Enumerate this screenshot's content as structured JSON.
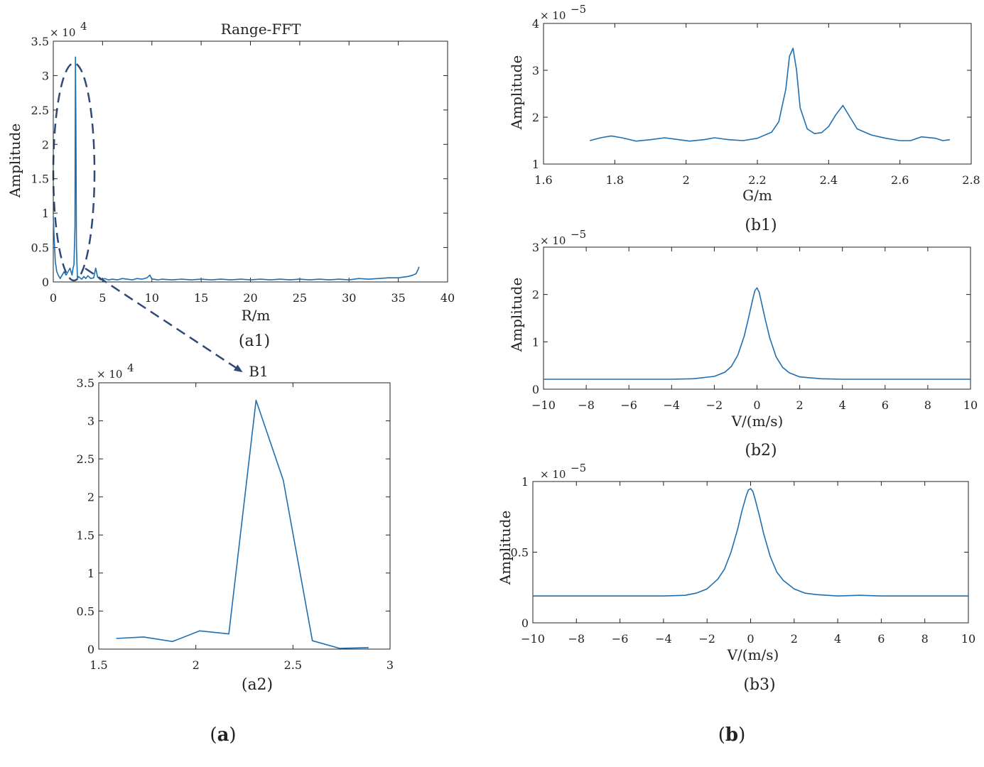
{
  "colors": {
    "series": "#1f6fb0",
    "axis": "#222222",
    "annotation": "#2f4a78"
  },
  "captions": {
    "a": "a",
    "b": "b"
  },
  "annotations": {
    "peak_label": "B1"
  },
  "chart_data": [
    {
      "id": "a1",
      "type": "line",
      "title": "Range-FFT",
      "caption": "(a1)",
      "xlabel": "R/m",
      "ylabel": "Amplitude",
      "exponent_label": "× 10",
      "exponent": "4",
      "xlim": [
        0,
        40
      ],
      "ylim": [
        0,
        3.5
      ],
      "xticks": [
        0,
        5,
        10,
        15,
        20,
        25,
        30,
        35,
        40
      ],
      "xtick_labels": [
        "0",
        "5",
        "10",
        "15",
        "20",
        "25",
        "30",
        "35",
        "40"
      ],
      "yticks": [
        0,
        0.5,
        1,
        1.5,
        2,
        2.5,
        3,
        3.5
      ],
      "ytick_labels": [
        "0",
        "0.5",
        "1",
        "1.5",
        "2",
        "2.5",
        "3",
        "3.5"
      ],
      "series": [
        {
          "name": "Range-FFT",
          "x": [
            0,
            0.1,
            0.2,
            0.35,
            0.5,
            0.7,
            0.9,
            1.1,
            1.3,
            1.5,
            1.7,
            1.9,
            2.0,
            2.1,
            2.2,
            2.25,
            2.3,
            2.35,
            2.45,
            2.55,
            2.7,
            2.9,
            3.1,
            3.3,
            3.5,
            3.8,
            4.1,
            4.3,
            4.5,
            4.8,
            5.2,
            5.6,
            6,
            6.5,
            7,
            7.5,
            8,
            8.5,
            9,
            9.5,
            9.8,
            10.0,
            10.2,
            10.6,
            11,
            12,
            13,
            14,
            15,
            16,
            17,
            18,
            19,
            20,
            21,
            22,
            23,
            24,
            25,
            26,
            27,
            28,
            29,
            30,
            31,
            32,
            33,
            34,
            35,
            35.5,
            36,
            36.5,
            36.8,
            37.0,
            37.1
          ],
          "y": [
            0.95,
            0.6,
            0.3,
            0.15,
            0.1,
            0.05,
            0.1,
            0.15,
            0.1,
            0.15,
            0.2,
            0.1,
            0.2,
            0.25,
            0.8,
            3.27,
            2.2,
            0.5,
            0.05,
            0.08,
            0.06,
            0.04,
            0.08,
            0.05,
            0.09,
            0.05,
            0.06,
            0.2,
            0.07,
            0.03,
            0.05,
            0.03,
            0.04,
            0.03,
            0.05,
            0.04,
            0.03,
            0.05,
            0.04,
            0.06,
            0.1,
            0.04,
            0.04,
            0.03,
            0.04,
            0.03,
            0.04,
            0.03,
            0.04,
            0.03,
            0.04,
            0.03,
            0.04,
            0.03,
            0.04,
            0.03,
            0.04,
            0.03,
            0.04,
            0.03,
            0.04,
            0.03,
            0.04,
            0.03,
            0.05,
            0.04,
            0.05,
            0.06,
            0.06,
            0.07,
            0.08,
            0.1,
            0.12,
            0.18,
            0.22
          ]
        }
      ]
    },
    {
      "id": "a2",
      "type": "line",
      "title": "B1",
      "caption": "(a2)",
      "xlabel": "",
      "ylabel": "",
      "exponent_label": "× 10",
      "exponent": "4",
      "xlim": [
        1.5,
        3
      ],
      "ylim": [
        0,
        3.5
      ],
      "xticks": [
        1.5,
        2,
        2.5,
        3
      ],
      "xtick_labels": [
        "1.5",
        "2",
        "2.5",
        "3"
      ],
      "yticks": [
        0,
        0.5,
        1,
        1.5,
        2,
        2.5,
        3,
        3.5
      ],
      "ytick_labels": [
        "0",
        "0.5",
        "1",
        "1.5",
        "2",
        "2.5",
        "3",
        "3.5"
      ],
      "series": [
        {
          "name": "B1",
          "x": [
            1.59,
            1.73,
            1.88,
            2.02,
            2.17,
            2.31,
            2.45,
            2.6,
            2.74,
            2.89
          ],
          "y": [
            0.14,
            0.16,
            0.1,
            0.24,
            0.2,
            3.27,
            2.22,
            0.11,
            0.01,
            0.02
          ]
        }
      ]
    },
    {
      "id": "b1",
      "type": "line",
      "title": "",
      "caption": "(b1)",
      "xlabel": "G/m",
      "ylabel": "Amplitude",
      "exponent_label": "× 10",
      "exponent": "−5",
      "xlim": [
        1.6,
        2.8
      ],
      "ylim": [
        1,
        4
      ],
      "xticks": [
        1.6,
        1.8,
        2,
        2.2,
        2.4,
        2.6,
        2.8
      ],
      "xtick_labels": [
        "1.6",
        "1.8",
        "2",
        "2.2",
        "2.4",
        "2.6",
        "2.8"
      ],
      "yticks": [
        1,
        2,
        3,
        4
      ],
      "ytick_labels": [
        "1",
        "2",
        "3",
        "4"
      ],
      "series": [
        {
          "name": "b1",
          "x": [
            1.73,
            1.76,
            1.79,
            1.82,
            1.86,
            1.9,
            1.94,
            1.98,
            2.01,
            2.05,
            2.08,
            2.12,
            2.16,
            2.2,
            2.24,
            2.26,
            2.28,
            2.29,
            2.3,
            2.31,
            2.32,
            2.34,
            2.36,
            2.38,
            2.4,
            2.42,
            2.44,
            2.46,
            2.48,
            2.52,
            2.56,
            2.6,
            2.63,
            2.66,
            2.7,
            2.72,
            2.74
          ],
          "y": [
            1.5,
            1.56,
            1.6,
            1.56,
            1.49,
            1.52,
            1.56,
            1.52,
            1.49,
            1.52,
            1.56,
            1.52,
            1.5,
            1.55,
            1.68,
            1.9,
            2.6,
            3.3,
            3.47,
            3.0,
            2.2,
            1.75,
            1.65,
            1.67,
            1.8,
            2.05,
            2.25,
            2.0,
            1.75,
            1.62,
            1.55,
            1.5,
            1.5,
            1.58,
            1.55,
            1.5,
            1.52
          ]
        }
      ]
    },
    {
      "id": "b2",
      "type": "line",
      "title": "",
      "caption": "(b2)",
      "xlabel": "V/(m/s)",
      "ylabel": "Amplitude",
      "exponent_label": "× 10",
      "exponent": "−5",
      "xlim": [
        -10,
        10
      ],
      "ylim": [
        0,
        3
      ],
      "xticks": [
        -10,
        -8,
        -6,
        -4,
        -2,
        0,
        2,
        4,
        6,
        8,
        10
      ],
      "xtick_labels": [
        "−10",
        "−8",
        "−6",
        "−4",
        "−2",
        "0",
        "2",
        "4",
        "6",
        "8",
        "10"
      ],
      "yticks": [
        0,
        1,
        2,
        3
      ],
      "ytick_labels": [
        "0",
        "1",
        "2",
        "3"
      ],
      "series": [
        {
          "name": "b2",
          "x": [
            -10,
            -8,
            -6,
            -4,
            -3,
            -2,
            -1.5,
            -1.2,
            -0.9,
            -0.6,
            -0.4,
            -0.2,
            -0.1,
            0,
            0.1,
            0.2,
            0.4,
            0.6,
            0.9,
            1.2,
            1.5,
            2,
            3,
            4,
            6,
            8,
            10
          ],
          "y": [
            0.21,
            0.21,
            0.21,
            0.21,
            0.22,
            0.27,
            0.36,
            0.48,
            0.72,
            1.12,
            1.5,
            1.9,
            2.08,
            2.14,
            2.05,
            1.85,
            1.45,
            1.08,
            0.68,
            0.46,
            0.35,
            0.26,
            0.22,
            0.21,
            0.21,
            0.21,
            0.21
          ]
        }
      ]
    },
    {
      "id": "b3",
      "type": "line",
      "title": "",
      "caption": "(b3)",
      "xlabel": "V/(m/s)",
      "ylabel": "Amplitude",
      "exponent_label": "× 10",
      "exponent": "−5",
      "xlim": [
        -10,
        10
      ],
      "ylim": [
        0,
        1
      ],
      "xticks": [
        -10,
        -8,
        -6,
        -4,
        -2,
        0,
        2,
        4,
        6,
        8,
        10
      ],
      "xtick_labels": [
        "−10",
        "−8",
        "−6",
        "−4",
        "−2",
        "0",
        "2",
        "4",
        "6",
        "8",
        "10"
      ],
      "yticks": [
        0,
        0.5,
        1
      ],
      "ytick_labels": [
        "0",
        "0.5",
        "1"
      ],
      "series": [
        {
          "name": "b3",
          "x": [
            -10,
            -8,
            -6,
            -4,
            -3,
            -2.5,
            -2,
            -1.5,
            -1.2,
            -0.9,
            -0.6,
            -0.4,
            -0.2,
            -0.1,
            0,
            0.1,
            0.2,
            0.4,
            0.6,
            0.9,
            1.2,
            1.5,
            2,
            2.5,
            3,
            4,
            5,
            6,
            8,
            10
          ],
          "y": [
            0.19,
            0.19,
            0.19,
            0.19,
            0.195,
            0.21,
            0.24,
            0.31,
            0.38,
            0.5,
            0.66,
            0.79,
            0.9,
            0.94,
            0.95,
            0.93,
            0.88,
            0.76,
            0.63,
            0.47,
            0.36,
            0.3,
            0.24,
            0.21,
            0.2,
            0.19,
            0.195,
            0.19,
            0.19,
            0.19
          ]
        }
      ]
    }
  ]
}
